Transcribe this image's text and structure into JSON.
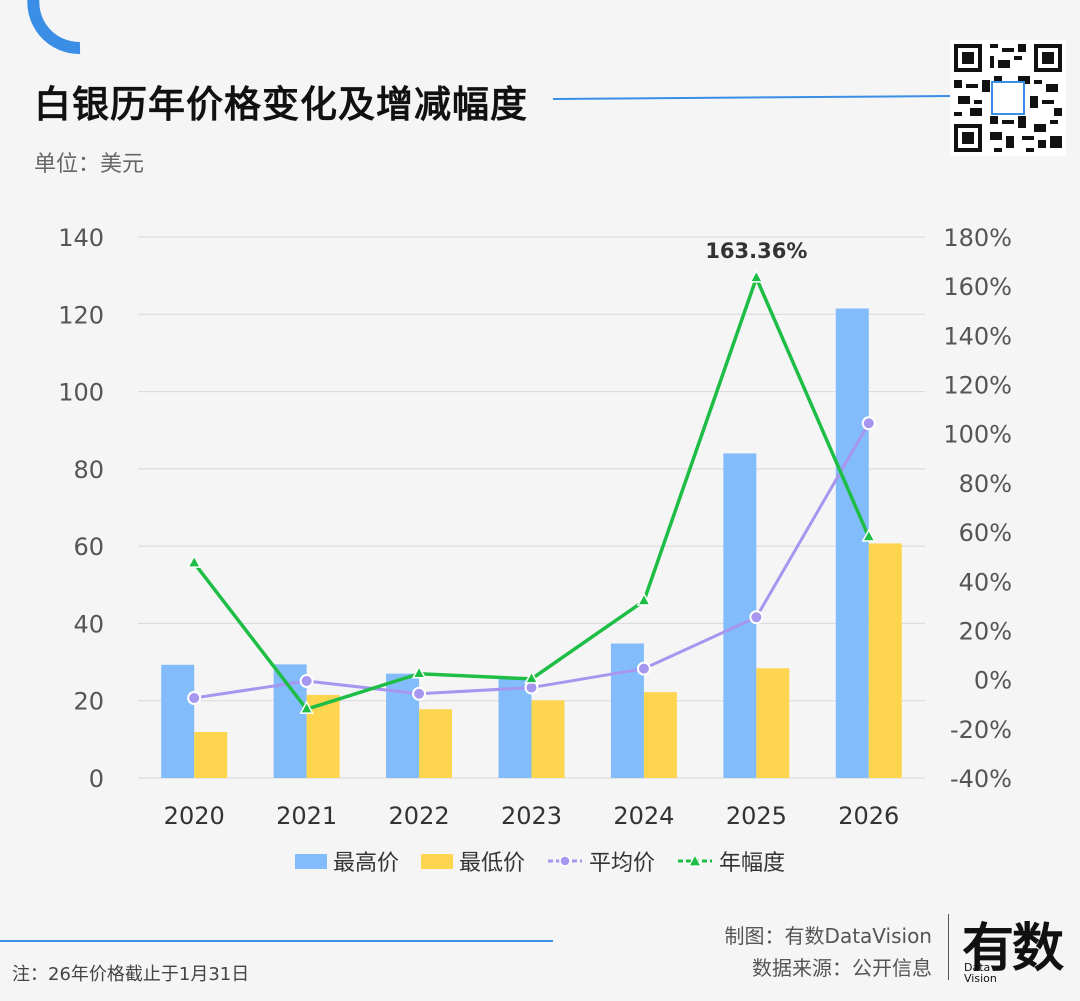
{
  "header": {
    "title": "白银历年价格变化及增减幅度",
    "unit": "单位：美元",
    "accent_color": "#3a8ee6"
  },
  "chart_data": {
    "type": "bar",
    "categories": [
      "2020",
      "2021",
      "2022",
      "2023",
      "2024",
      "2025",
      "2026"
    ],
    "series": [
      {
        "name": "最高价",
        "kind": "bar",
        "axis": "left",
        "color": "#82bcfb",
        "values": [
          29.3,
          29.4,
          27.0,
          25.9,
          34.8,
          84.0,
          121.5
        ]
      },
      {
        "name": "最低价",
        "kind": "bar",
        "axis": "left",
        "color": "#fdd54f",
        "values": [
          11.9,
          21.5,
          17.8,
          20.1,
          22.2,
          28.4,
          60.7
        ]
      },
      {
        "name": "平均价",
        "kind": "line",
        "axis": "left",
        "color": "#a696f0",
        "marker": "circle",
        "values": [
          20.7,
          25.1,
          21.8,
          23.4,
          28.3,
          41.6,
          91.8
        ]
      },
      {
        "name": "年幅度",
        "kind": "line",
        "axis": "right",
        "color": "#1ebe46",
        "marker": "triangle",
        "values": [
          47.4,
          -12.0,
          2.4,
          0.3,
          32.0,
          163.36,
          58.0
        ]
      }
    ],
    "y_left": {
      "min": 0,
      "max": 140,
      "step": 20,
      "ticks": [
        "0",
        "20",
        "40",
        "60",
        "80",
        "100",
        "120",
        "140"
      ]
    },
    "y_right": {
      "min": -40,
      "max": 180,
      "step": 20,
      "ticks": [
        "-40%",
        "-20%",
        "0%",
        "20%",
        "40%",
        "60%",
        "80%",
        "100%",
        "120%",
        "140%",
        "160%",
        "180%"
      ]
    },
    "annotation": {
      "text": "163.36%",
      "series": "年幅度",
      "index": 5
    },
    "grid": true,
    "legend_position": "bottom"
  },
  "legend": {
    "items": [
      {
        "label": "最高价"
      },
      {
        "label": "最低价"
      },
      {
        "label": "平均价"
      },
      {
        "label": "年幅度"
      }
    ]
  },
  "footer": {
    "made_by": "制图：有数DataVision",
    "source": "数据来源：公开信息",
    "note": "注：26年价格截止于1月31日",
    "logo_cn": "有数",
    "logo_en_1": "Data",
    "logo_en_2": "Vision"
  }
}
